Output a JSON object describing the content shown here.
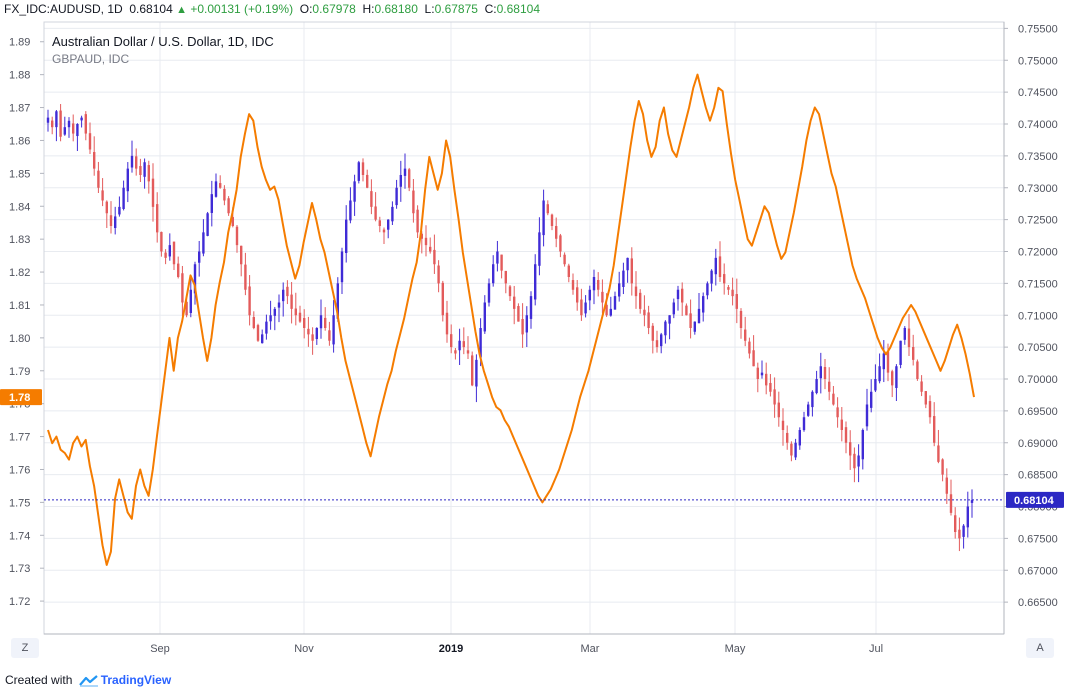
{
  "header": {
    "symbol": "FX_IDC:AUDUSD, 1D",
    "last": "0.68104",
    "change": "+0.00131 (+0.19%)",
    "o_label": "O:",
    "o_value": "0.67978",
    "h_label": "H:",
    "h_value": "0.68180",
    "l_label": "L:",
    "l_value": "0.67875",
    "c_label": "C:",
    "c_value": "0.68104"
  },
  "footer": {
    "created_with": "Created with",
    "brand": "TradingView"
  },
  "buttons": {
    "left": "Z",
    "right": "A"
  },
  "colors": {
    "up": "#3f2bd6",
    "down": "#e35b5b",
    "overlay": "#f57c00",
    "grid": "#e8ebf0",
    "price_line": "#2c28c4"
  },
  "chart_data": {
    "type": "line",
    "title": "Australian Dollar / U.S. Dollar, 1D, IDC",
    "subtitle": "GBPAUD, IDC",
    "x_tick_labels": [
      "Sep",
      "Nov",
      "2019",
      "Mar",
      "May",
      "Jul"
    ],
    "right_axis": {
      "series": "AUDUSD",
      "range": [
        0.66,
        0.756
      ],
      "tick_labels": [
        "0.75500",
        "0.75000",
        "0.74500",
        "0.74000",
        "0.73500",
        "0.73000",
        "0.72500",
        "0.72000",
        "0.71500",
        "0.71000",
        "0.70500",
        "0.70000",
        "0.69500",
        "0.69000",
        "0.68500",
        "0.68000",
        "0.67500",
        "0.67000",
        "0.66500"
      ],
      "last_value_label": "0.68104",
      "last_value": 0.68104
    },
    "left_axis": {
      "series": "GBPAUD",
      "range": [
        1.71,
        1.896
      ],
      "tick_labels": [
        "1.89",
        "1.88",
        "1.87",
        "1.86",
        "1.85",
        "1.84",
        "1.83",
        "1.82",
        "1.81",
        "1.80",
        "1.79",
        "1.78",
        "1.77",
        "1.76",
        "1.75",
        "1.74",
        "1.73",
        "1.72"
      ],
      "last_value_label": "1.78",
      "last_value": 1.782
    },
    "series": [
      {
        "name": "AUDUSD (candles, approx. daily closes)",
        "axis": "right",
        "values": [
          0.741,
          0.7395,
          0.742,
          0.738,
          0.7395,
          0.7405,
          0.7385,
          0.74,
          0.741,
          0.7385,
          0.736,
          0.733,
          0.73,
          0.728,
          0.726,
          0.724,
          0.7255,
          0.727,
          0.73,
          0.733,
          0.735,
          0.733,
          0.732,
          0.734,
          0.731,
          0.727,
          0.723,
          0.72,
          0.719,
          0.721,
          0.718,
          0.716,
          0.712,
          0.71,
          0.714,
          0.718,
          0.72,
          0.723,
          0.726,
          0.729,
          0.731,
          0.73,
          0.728,
          0.726,
          0.724,
          0.721,
          0.718,
          0.714,
          0.71,
          0.708,
          0.706,
          0.707,
          0.709,
          0.71,
          0.711,
          0.712,
          0.714,
          0.713,
          0.711,
          0.71,
          0.709,
          0.708,
          0.707,
          0.706,
          0.708,
          0.71,
          0.708,
          0.706,
          0.71,
          0.715,
          0.72,
          0.725,
          0.728,
          0.731,
          0.734,
          0.732,
          0.73,
          0.727,
          0.725,
          0.724,
          0.723,
          0.725,
          0.727,
          0.73,
          0.732,
          0.733,
          0.73,
          0.726,
          0.723,
          0.722,
          0.721,
          0.72,
          0.718,
          0.715,
          0.71,
          0.707,
          0.705,
          0.704,
          0.706,
          0.705,
          0.704,
          0.699,
          0.703,
          0.708,
          0.712,
          0.715,
          0.718,
          0.72,
          0.717,
          0.715,
          0.713,
          0.711,
          0.709,
          0.707,
          0.71,
          0.713,
          0.718,
          0.723,
          0.728,
          0.726,
          0.724,
          0.722,
          0.72,
          0.718,
          0.716,
          0.714,
          0.712,
          0.71,
          0.712,
          0.714,
          0.716,
          0.714,
          0.712,
          0.71,
          0.711,
          0.713,
          0.715,
          0.717,
          0.719,
          0.715,
          0.713,
          0.711,
          0.71,
          0.708,
          0.706,
          0.705,
          0.707,
          0.709,
          0.71,
          0.712,
          0.714,
          0.712,
          0.71,
          0.708,
          0.709,
          0.711,
          0.713,
          0.715,
          0.717,
          0.719,
          0.716,
          0.715,
          0.714,
          0.713,
          0.711,
          0.708,
          0.706,
          0.704,
          0.702,
          0.7,
          0.701,
          0.699,
          0.698,
          0.696,
          0.694,
          0.692,
          0.69,
          0.688,
          0.69,
          0.692,
          0.694,
          0.696,
          0.698,
          0.7,
          0.702,
          0.7,
          0.698,
          0.696,
          0.694,
          0.692,
          0.69,
          0.688,
          0.686,
          0.688,
          0.692,
          0.696,
          0.698,
          0.7,
          0.702,
          0.704,
          0.701,
          0.699,
          0.702,
          0.706,
          0.708,
          0.705,
          0.703,
          0.7,
          0.698,
          0.696,
          0.694,
          0.69,
          0.687,
          0.685,
          0.682,
          0.679,
          0.676,
          0.675,
          0.677,
          0.68,
          0.681
        ]
      },
      {
        "name": "GBPAUD",
        "axis": "left",
        "color": "#f57c00",
        "values": [
          1.772,
          1.768,
          1.77,
          1.766,
          1.765,
          1.763,
          1.768,
          1.77,
          1.767,
          1.769,
          1.761,
          1.755,
          1.746,
          1.737,
          1.731,
          1.735,
          1.751,
          1.757,
          1.752,
          1.747,
          1.745,
          1.755,
          1.76,
          1.755,
          1.752,
          1.76,
          1.77,
          1.78,
          1.79,
          1.8,
          1.79,
          1.8,
          1.805,
          1.812,
          1.819,
          1.816,
          1.808,
          1.8,
          1.793,
          1.8,
          1.81,
          1.817,
          1.823,
          1.832,
          1.838,
          1.845,
          1.855,
          1.862,
          1.868,
          1.866,
          1.858,
          1.852,
          1.848,
          1.845,
          1.846,
          1.842,
          1.835,
          1.828,
          1.823,
          1.818,
          1.822,
          1.829,
          1.835,
          1.841,
          1.836,
          1.83,
          1.826,
          1.82,
          1.814,
          1.808,
          1.8,
          1.793,
          1.788,
          1.783,
          1.778,
          1.773,
          1.768,
          1.764,
          1.77,
          1.776,
          1.781,
          1.786,
          1.79,
          1.796,
          1.801,
          1.806,
          1.812,
          1.818,
          1.823,
          1.832,
          1.845,
          1.855,
          1.85,
          1.845,
          1.85,
          1.86,
          1.855,
          1.845,
          1.836,
          1.826,
          1.818,
          1.81,
          1.802,
          1.795,
          1.79,
          1.786,
          1.782,
          1.779,
          1.778,
          1.775,
          1.773,
          1.77,
          1.767,
          1.764,
          1.761,
          1.758,
          1.755,
          1.752,
          1.75,
          1.752,
          1.754,
          1.757,
          1.76,
          1.764,
          1.768,
          1.772,
          1.777,
          1.782,
          1.786,
          1.79,
          1.795,
          1.8,
          1.805,
          1.81,
          1.815,
          1.822,
          1.831,
          1.84,
          1.849,
          1.858,
          1.866,
          1.872,
          1.868,
          1.86,
          1.855,
          1.858,
          1.866,
          1.87,
          1.862,
          1.857,
          1.855,
          1.86,
          1.865,
          1.87,
          1.876,
          1.88,
          1.875,
          1.87,
          1.866,
          1.87,
          1.876,
          1.875,
          1.865,
          1.856,
          1.848,
          1.842,
          1.836,
          1.83,
          1.828,
          1.832,
          1.836,
          1.84,
          1.838,
          1.833,
          1.828,
          1.824,
          1.826,
          1.832,
          1.838,
          1.845,
          1.852,
          1.86,
          1.866,
          1.87,
          1.868,
          1.862,
          1.856,
          1.85,
          1.846,
          1.84,
          1.834,
          1.828,
          1.822,
          1.818,
          1.815,
          1.812,
          1.808,
          1.804,
          1.8,
          1.797,
          1.795,
          1.797,
          1.8,
          1.803,
          1.806,
          1.808,
          1.81,
          1.808,
          1.805,
          1.802,
          1.799,
          1.796,
          1.793,
          1.79,
          1.793,
          1.797,
          1.801,
          1.804,
          1.8,
          1.795,
          1.789,
          1.782
        ]
      }
    ]
  }
}
